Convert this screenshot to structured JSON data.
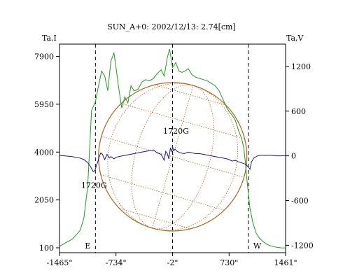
{
  "chart_data": {
    "type": "line",
    "title": "SUN_A+0: 2002/12/13: 2.74[cm]",
    "left_axis": {
      "label": "Ta,I",
      "ticks": [
        100,
        2050,
        4000,
        5950,
        7900
      ],
      "tick_labels": [
        "100",
        "2050",
        "4000",
        "5950",
        "7900"
      ],
      "range": [
        -100,
        8400
      ]
    },
    "right_axis": {
      "label": "Ta,V",
      "ticks": [
        -1200,
        -600,
        0,
        600,
        1200
      ],
      "tick_labels": [
        "-1200",
        "-600",
        "0",
        "600",
        "1200"
      ],
      "range": [
        -1300,
        1500
      ]
    },
    "x_axis": {
      "ticks": [
        -1465,
        -734,
        -2,
        730,
        1461
      ],
      "tick_labels": [
        "-1465\"",
        "-734\"",
        "-2\"",
        "730\"",
        "1461\""
      ],
      "range": [
        -1465,
        1461
      ]
    },
    "markers": [
      {
        "x": -1000,
        "label": "E"
      },
      {
        "x": -2,
        "label": ""
      },
      {
        "x": 980,
        "label": "W"
      }
    ],
    "annotations": [
      {
        "text": "1720G",
        "x": -1000,
        "y": -170,
        "axis": "V"
      },
      {
        "text": "1720G",
        "x": -2,
        "y": 110,
        "axis": "V"
      }
    ],
    "disk": {
      "center_x": 0,
      "radius": 960,
      "color": "#b5651d"
    },
    "series": [
      {
        "axis": "I",
        "color": "#1e9e1e",
        "x": [
          -1465,
          -1400,
          -1300,
          -1200,
          -1150,
          -1100,
          -1050,
          -1000,
          -960,
          -920,
          -880,
          -840,
          -800,
          -760,
          -734,
          -700,
          -660,
          -620,
          -580,
          -540,
          -500,
          -450,
          -400,
          -350,
          -300,
          -250,
          -200,
          -150,
          -110,
          -70,
          -40,
          -2,
          40,
          80,
          120,
          160,
          200,
          250,
          300,
          350,
          400,
          450,
          500,
          550,
          600,
          650,
          700,
          730,
          770,
          810,
          850,
          880,
          900,
          920,
          940,
          960,
          980,
          1000,
          1040,
          1080,
          1120,
          1160,
          1200,
          1250,
          1300,
          1350,
          1400,
          1461
        ],
        "values": [
          160,
          280,
          450,
          800,
          1300,
          2600,
          5700,
          6050,
          6700,
          7300,
          7100,
          6500,
          7700,
          8050,
          7450,
          6650,
          5800,
          6250,
          6000,
          6700,
          6500,
          6550,
          6850,
          6950,
          6900,
          7000,
          7200,
          7350,
          7100,
          7850,
          8200,
          7450,
          7650,
          7300,
          7250,
          7300,
          7400,
          7150,
          7050,
          7000,
          6950,
          6900,
          6800,
          6700,
          6500,
          6150,
          5800,
          5650,
          5500,
          5300,
          4900,
          4650,
          4450,
          4150,
          3600,
          2900,
          2300,
          1700,
          1100,
          700,
          500,
          380,
          280,
          200,
          150,
          120,
          100,
          90
        ]
      },
      {
        "axis": "V",
        "color": "#1a1a8c",
        "x": [
          -1465,
          -1400,
          -1300,
          -1200,
          -1150,
          -1100,
          -1060,
          -1030,
          -1010,
          -1000,
          -990,
          -970,
          -950,
          -930,
          -910,
          -880,
          -850,
          -820,
          -800,
          -760,
          -734,
          -700,
          -650,
          -600,
          -550,
          -500,
          -450,
          -400,
          -350,
          -300,
          -250,
          -200,
          -150,
          -110,
          -90,
          -70,
          -50,
          -30,
          -10,
          -2,
          10,
          30,
          60,
          100,
          150,
          200,
          250,
          300,
          350,
          400,
          450,
          500,
          550,
          600,
          650,
          700,
          730,
          770,
          810,
          850,
          880,
          910,
          940,
          960,
          980,
          1000,
          1020,
          1050,
          1100,
          1150,
          1200,
          1250,
          1300,
          1350,
          1400,
          1461
        ],
        "values": [
          5,
          0,
          -10,
          -30,
          -50,
          -90,
          -150,
          -210,
          -200,
          -180,
          -140,
          -80,
          -10,
          40,
          20,
          -50,
          20,
          -30,
          -10,
          -40,
          -20,
          -10,
          0,
          10,
          20,
          30,
          40,
          50,
          60,
          70,
          80,
          40,
          20,
          -60,
          60,
          30,
          -40,
          100,
          60,
          130,
          70,
          90,
          60,
          40,
          30,
          50,
          40,
          30,
          30,
          20,
          10,
          0,
          -10,
          -20,
          -30,
          -40,
          -50,
          -70,
          -60,
          -80,
          -90,
          -100,
          -110,
          -130,
          -150,
          -180,
          -80,
          -30,
          0,
          10,
          5,
          10,
          5,
          0,
          0,
          5
        ]
      }
    ]
  }
}
